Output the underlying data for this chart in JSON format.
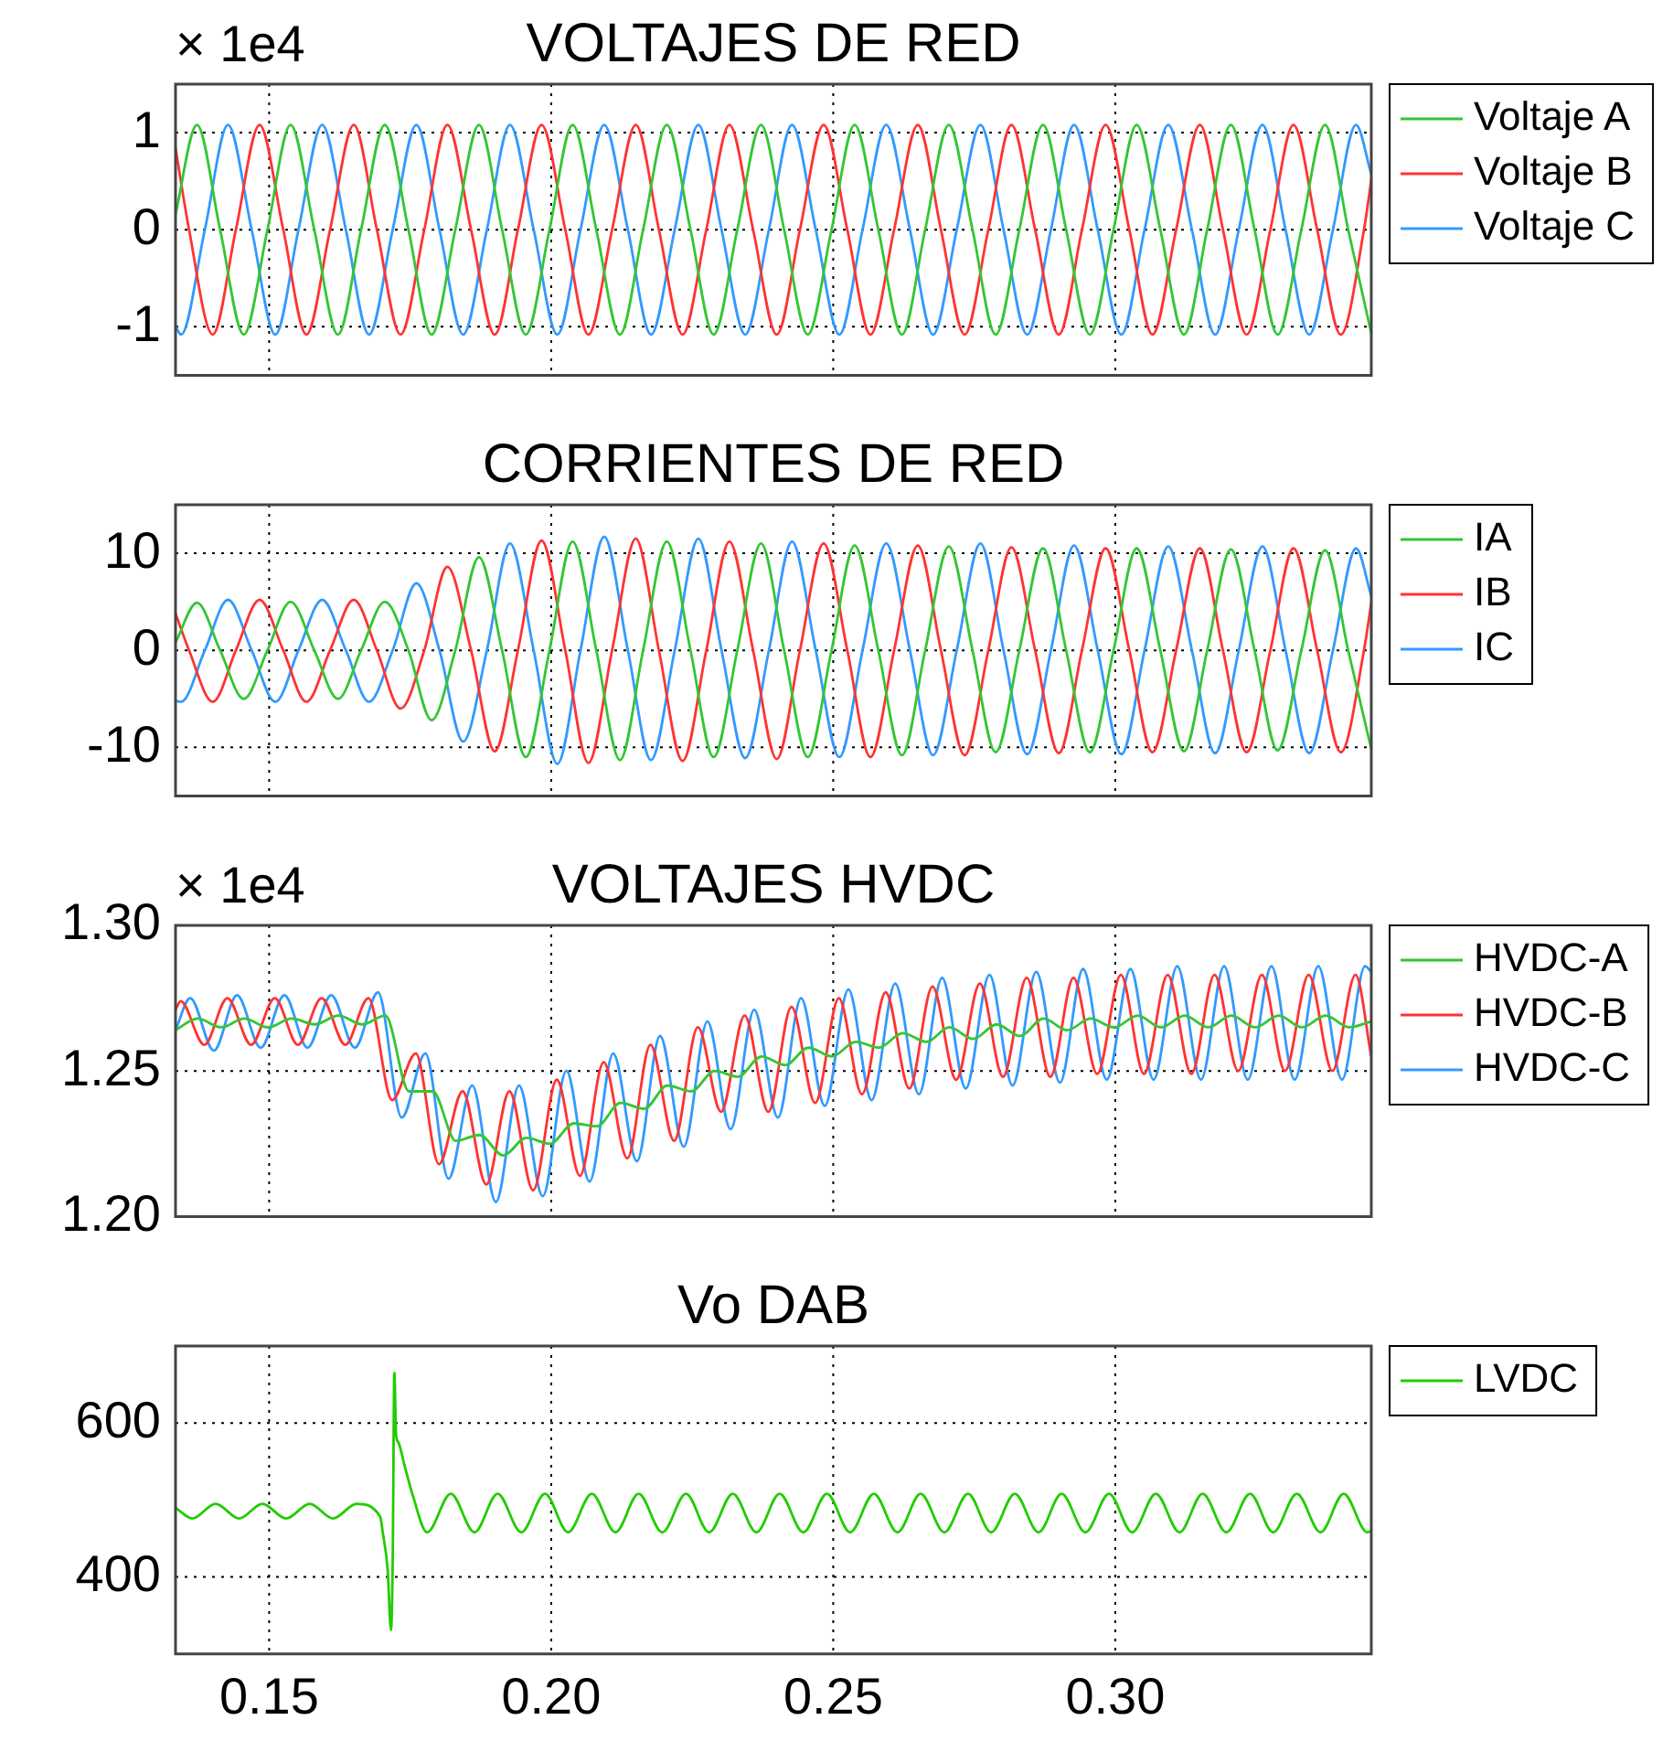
{
  "chart_data": [
    {
      "type": "line",
      "title": "VOLTAJES DE RED",
      "ylabel": "× 1e4",
      "xlim": [
        0.1334,
        0.3454
      ],
      "ylim": [
        -1.5,
        1.5
      ],
      "xticks": [
        0.15,
        0.2,
        0.25,
        0.3
      ],
      "yticks": [
        -1,
        0,
        1
      ],
      "grid": true,
      "legend": "right",
      "tick_labels": "y",
      "series": [
        {
          "name": "Voltaje A",
          "color": "#33c633",
          "x": [
            0.1334,
            0.1372,
            0.1413,
            0.1455,
            0.1497,
            0.1538,
            0.158,
            0.1622,
            0.1663,
            0.1705,
            0.1747,
            0.1788,
            0.183,
            0.1872,
            0.1913,
            0.1955,
            0.1997,
            0.2038,
            0.208,
            0.2122,
            0.2163,
            0.2205,
            0.2247,
            0.2288,
            0.233,
            0.2372,
            0.2413,
            0.2455,
            0.2497,
            0.2538,
            0.258,
            0.2622,
            0.2663,
            0.2705,
            0.2747,
            0.2788,
            0.283,
            0.2872,
            0.2913,
            0.2955,
            0.2997,
            0.3038,
            0.308,
            0.3122,
            0.3163,
            0.3205,
            0.3247,
            0.3288,
            0.333,
            0.3372,
            0.3413,
            0.3454
          ],
          "values": [
            0.16,
            1.08,
            0,
            -1.08,
            0,
            1.08,
            0,
            -1.08,
            0,
            1.08,
            0,
            -1.08,
            0,
            1.08,
            0,
            -1.08,
            0,
            1.08,
            0,
            -1.08,
            0,
            1.08,
            0,
            -1.08,
            0,
            1.08,
            0,
            -1.08,
            0,
            1.08,
            0,
            -1.08,
            0,
            1.08,
            0,
            -1.08,
            0,
            1.08,
            0,
            -1.08,
            0,
            1.08,
            0,
            -1.08,
            0,
            1.08,
            0,
            -1.08,
            0,
            1.08,
            0,
            -1.07
          ]
        },
        {
          "name": "Voltaje B",
          "color": "#ff3333",
          "x": [
            0.1334,
            0.1358,
            0.14,
            0.1441,
            0.1483,
            0.1525,
            0.1566,
            0.1608,
            0.165,
            0.1691,
            0.1733,
            0.1775,
            0.1816,
            0.1858,
            0.19,
            0.1941,
            0.1983,
            0.2025,
            0.2066,
            0.2108,
            0.215,
            0.2191,
            0.2233,
            0.2275,
            0.2316,
            0.2358,
            0.24,
            0.2441,
            0.2483,
            0.2525,
            0.2566,
            0.2608,
            0.265,
            0.2691,
            0.2733,
            0.2775,
            0.2816,
            0.2858,
            0.29,
            0.2941,
            0.2983,
            0.3025,
            0.3066,
            0.3108,
            0.315,
            0.3191,
            0.3233,
            0.3275,
            0.3316,
            0.3358,
            0.34,
            0.3441,
            0.3454
          ],
          "values": [
            0.84,
            0,
            -1.08,
            0,
            1.08,
            0,
            -1.08,
            0,
            1.08,
            0,
            -1.08,
            0,
            1.08,
            0,
            -1.08,
            0,
            1.08,
            0,
            -1.08,
            0,
            1.08,
            0,
            -1.08,
            0,
            1.08,
            0,
            -1.08,
            0,
            1.08,
            0,
            -1.08,
            0,
            1.08,
            0,
            -1.08,
            0,
            1.08,
            0,
            -1.08,
            0,
            1.08,
            0,
            -1.08,
            0,
            1.08,
            0,
            -1.08,
            0,
            1.08,
            0,
            -1.08,
            0,
            0.51
          ]
        },
        {
          "name": "Voltaje C",
          "color": "#3399ff",
          "x": [
            0.1334,
            0.1344,
            0.1386,
            0.1427,
            0.1469,
            0.1511,
            0.1552,
            0.1594,
            0.1636,
            0.1677,
            0.1719,
            0.1761,
            0.1802,
            0.1844,
            0.1886,
            0.1927,
            0.1969,
            0.2011,
            0.2052,
            0.2094,
            0.2136,
            0.2177,
            0.2219,
            0.2261,
            0.2302,
            0.2344,
            0.2386,
            0.2427,
            0.2469,
            0.2511,
            0.2552,
            0.2594,
            0.2636,
            0.2677,
            0.2719,
            0.2761,
            0.2802,
            0.2844,
            0.2886,
            0.2927,
            0.2969,
            0.3011,
            0.3052,
            0.3094,
            0.3136,
            0.3177,
            0.3219,
            0.3261,
            0.3302,
            0.3344,
            0.3386,
            0.3427,
            0.3454
          ],
          "values": [
            -1.0,
            -1.08,
            0,
            1.08,
            0,
            -1.08,
            0,
            1.08,
            0,
            -1.08,
            0,
            1.08,
            0,
            -1.08,
            0,
            1.08,
            0,
            -1.08,
            0,
            1.08,
            0,
            -1.08,
            0,
            1.08,
            0,
            -1.08,
            0,
            1.08,
            0,
            -1.08,
            0,
            1.08,
            0,
            -1.08,
            0,
            1.08,
            0,
            -1.08,
            0,
            1.08,
            0,
            -1.08,
            0,
            1.08,
            0,
            -1.08,
            0,
            1.08,
            0,
            -1.08,
            0,
            1.08,
            0.57
          ]
        }
      ]
    },
    {
      "type": "line",
      "title": "CORRIENTES DE RED",
      "xlim": [
        0.1334,
        0.3454
      ],
      "ylim": [
        -15,
        15
      ],
      "xticks": [
        0.15,
        0.2,
        0.25,
        0.3
      ],
      "yticks": [
        -10,
        0,
        10
      ],
      "grid": true,
      "legend": "right",
      "tick_labels": "y",
      "series": [
        {
          "name": "IA",
          "color": "#33c633",
          "x": [
            0.1334,
            0.1372,
            0.1413,
            0.1455,
            0.1497,
            0.1538,
            0.158,
            0.1622,
            0.1663,
            0.1705,
            0.1747,
            0.1788,
            0.183,
            0.1872,
            0.1913,
            0.1955,
            0.1997,
            0.2038,
            0.208,
            0.2122,
            0.2163,
            0.2205,
            0.2247,
            0.2288,
            0.233,
            0.2372,
            0.2413,
            0.2455,
            0.2497,
            0.2538,
            0.258,
            0.2622,
            0.2663,
            0.2705,
            0.2747,
            0.2788,
            0.283,
            0.2872,
            0.2913,
            0.2955,
            0.2997,
            0.3038,
            0.308,
            0.3122,
            0.3163,
            0.3205,
            0.3247,
            0.3288,
            0.333,
            0.3372,
            0.3413,
            0.3454
          ],
          "values": [
            0.8,
            4.9,
            0,
            -5,
            0,
            5,
            0,
            -5,
            0,
            5,
            0,
            -7.2,
            0,
            9.6,
            0,
            -11,
            0,
            11.2,
            0,
            -11.3,
            0,
            11.2,
            0,
            -11,
            0,
            11,
            0,
            -11,
            0,
            10.8,
            0,
            -10.8,
            0,
            10.7,
            0,
            -10.5,
            0,
            10.5,
            0,
            -10.5,
            0,
            10.5,
            0,
            -10.4,
            0,
            10.4,
            0,
            -10.3,
            0,
            10.3,
            0,
            -10.2
          ]
        },
        {
          "name": "IB",
          "color": "#ff3333",
          "x": [
            0.1334,
            0.1358,
            0.14,
            0.1441,
            0.1483,
            0.1525,
            0.1566,
            0.1608,
            0.165,
            0.1691,
            0.1733,
            0.1775,
            0.1816,
            0.1858,
            0.19,
            0.1941,
            0.1983,
            0.2025,
            0.2066,
            0.2108,
            0.215,
            0.2191,
            0.2233,
            0.2275,
            0.2316,
            0.2358,
            0.24,
            0.2441,
            0.2483,
            0.2525,
            0.2566,
            0.2608,
            0.265,
            0.2691,
            0.2733,
            0.2775,
            0.2816,
            0.2858,
            0.29,
            0.2941,
            0.2983,
            0.3025,
            0.3066,
            0.3108,
            0.315,
            0.3191,
            0.3233,
            0.3275,
            0.3316,
            0.3358,
            0.34,
            0.3441,
            0.3454
          ],
          "values": [
            3.8,
            0,
            -5.3,
            0,
            5.2,
            0,
            -5.3,
            0,
            5.2,
            0,
            -6,
            0,
            8.6,
            0,
            -10.4,
            0,
            11.3,
            0,
            -11.6,
            0,
            11.5,
            0,
            -11.4,
            0,
            11.2,
            0,
            -11.2,
            0,
            11,
            0,
            -11,
            0,
            10.8,
            0,
            -10.8,
            0,
            10.6,
            0,
            -10.6,
            0,
            10.5,
            0,
            -10.5,
            0,
            10.5,
            0,
            -10.5,
            0,
            10.5,
            0,
            -10.5,
            0,
            4.9
          ]
        },
        {
          "name": "IC",
          "color": "#3399ff",
          "x": [
            0.1334,
            0.1344,
            0.1386,
            0.1427,
            0.1469,
            0.1511,
            0.1552,
            0.1594,
            0.1636,
            0.1677,
            0.1719,
            0.1761,
            0.1802,
            0.1844,
            0.1886,
            0.1927,
            0.1969,
            0.2011,
            0.2052,
            0.2094,
            0.2136,
            0.2177,
            0.2219,
            0.2261,
            0.2302,
            0.2344,
            0.2386,
            0.2427,
            0.2469,
            0.2511,
            0.2552,
            0.2594,
            0.2636,
            0.2677,
            0.2719,
            0.2761,
            0.2802,
            0.2844,
            0.2886,
            0.2927,
            0.2969,
            0.3011,
            0.3052,
            0.3094,
            0.3136,
            0.3177,
            0.3219,
            0.3261,
            0.3302,
            0.3344,
            0.3386,
            0.3427,
            0.3454
          ],
          "values": [
            -5.2,
            -5.3,
            0,
            5.2,
            0,
            -5.3,
            0,
            5.2,
            0,
            -5.3,
            0,
            6.9,
            0,
            -9.4,
            0,
            11,
            0,
            -11.7,
            0,
            11.7,
            0,
            -11.3,
            0,
            11.5,
            0,
            -11.1,
            0,
            11.2,
            0,
            -11,
            0,
            11,
            0,
            -10.8,
            0,
            11,
            0,
            -10.7,
            0,
            10.8,
            0,
            -10.7,
            0,
            10.7,
            0,
            -10.6,
            0,
            10.7,
            0,
            -10.6,
            0,
            10.5,
            5.6
          ]
        }
      ]
    },
    {
      "type": "line",
      "title": "VOLTAJES HVDC",
      "ylabel": "× 1e4",
      "xlim": [
        0.1334,
        0.3454
      ],
      "ylim": [
        1.2,
        1.3
      ],
      "xticks": [
        0.15,
        0.2,
        0.25,
        0.3
      ],
      "yticks": [
        {
          "value": 1.2,
          "label": "1.20"
        },
        {
          "value": 1.25,
          "label": "1.25"
        },
        {
          "value": 1.3,
          "label": "1.30"
        }
      ],
      "grid": true,
      "legend": "right",
      "tick_labels": "y",
      "series": [
        {
          "name": "HVDC-A",
          "color": "#33c633",
          "x": [
            0.1334,
            0.1373,
            0.1415,
            0.1456,
            0.1498,
            0.154,
            0.1581,
            0.1623,
            0.1665,
            0.1706,
            0.1748,
            0.179,
            0.1831,
            0.1873,
            0.1915,
            0.1956,
            0.1998,
            0.204,
            0.2081,
            0.2123,
            0.2165,
            0.2206,
            0.2248,
            0.229,
            0.2331,
            0.2373,
            0.2415,
            0.2456,
            0.2498,
            0.254,
            0.2581,
            0.2623,
            0.2665,
            0.2706,
            0.2748,
            0.279,
            0.2831,
            0.2873,
            0.2915,
            0.2956,
            0.2998,
            0.304,
            0.3081,
            0.3123,
            0.3165,
            0.3206,
            0.3248,
            0.329,
            0.3331,
            0.3373,
            0.3415,
            0.3454
          ],
          "values": [
            1.264,
            1.268,
            1.265,
            1.268,
            1.265,
            1.268,
            1.266,
            1.269,
            1.266,
            1.269,
            1.243,
            1.243,
            1.226,
            1.228,
            1.221,
            1.227,
            1.225,
            1.232,
            1.231,
            1.239,
            1.237,
            1.245,
            1.243,
            1.25,
            1.248,
            1.255,
            1.252,
            1.258,
            1.255,
            1.26,
            1.258,
            1.263,
            1.26,
            1.265,
            1.261,
            1.266,
            1.262,
            1.268,
            1.264,
            1.268,
            1.265,
            1.269,
            1.265,
            1.269,
            1.265,
            1.269,
            1.265,
            1.269,
            1.265,
            1.269,
            1.265,
            1.267
          ]
        },
        {
          "name": "HVDC-B",
          "color": "#ff3333",
          "x": [
            0.1334,
            0.1343,
            0.1385,
            0.1426,
            0.1468,
            0.151,
            0.1551,
            0.1593,
            0.1635,
            0.1676,
            0.1718,
            0.176,
            0.1801,
            0.1843,
            0.1885,
            0.1926,
            0.1968,
            0.201,
            0.2051,
            0.2093,
            0.2135,
            0.2176,
            0.2218,
            0.226,
            0.2301,
            0.2343,
            0.2385,
            0.2426,
            0.2468,
            0.251,
            0.2551,
            0.2593,
            0.2635,
            0.2676,
            0.2718,
            0.276,
            0.2801,
            0.2843,
            0.2885,
            0.2926,
            0.2968,
            0.301,
            0.3051,
            0.3093,
            0.3135,
            0.3176,
            0.3218,
            0.326,
            0.3301,
            0.3343,
            0.3385,
            0.3426,
            0.3454
          ],
          "values": [
            1.271,
            1.274,
            1.259,
            1.275,
            1.259,
            1.275,
            1.259,
            1.275,
            1.259,
            1.275,
            1.24,
            1.256,
            1.218,
            1.243,
            1.211,
            1.243,
            1.209,
            1.247,
            1.214,
            1.253,
            1.22,
            1.259,
            1.226,
            1.265,
            1.236,
            1.269,
            1.236,
            1.272,
            1.239,
            1.275,
            1.242,
            1.277,
            1.244,
            1.279,
            1.247,
            1.28,
            1.248,
            1.282,
            1.248,
            1.282,
            1.249,
            1.283,
            1.249,
            1.283,
            1.249,
            1.283,
            1.25,
            1.283,
            1.25,
            1.283,
            1.25,
            1.283,
            1.255
          ]
        },
        {
          "name": "HVDC-C",
          "color": "#3399ff",
          "x": [
            0.1334,
            0.136,
            0.1402,
            0.1443,
            0.1485,
            0.1527,
            0.1568,
            0.161,
            0.1652,
            0.1693,
            0.1735,
            0.1777,
            0.1818,
            0.186,
            0.1902,
            0.1943,
            0.1985,
            0.2027,
            0.2068,
            0.211,
            0.2152,
            0.2193,
            0.2235,
            0.2277,
            0.2318,
            0.236,
            0.2402,
            0.2443,
            0.2485,
            0.2527,
            0.2568,
            0.261,
            0.2652,
            0.2693,
            0.2735,
            0.2777,
            0.2818,
            0.286,
            0.2902,
            0.2943,
            0.2985,
            0.3027,
            0.3068,
            0.311,
            0.3152,
            0.3193,
            0.3235,
            0.3277,
            0.3318,
            0.336,
            0.3402,
            0.3443,
            0.3454
          ],
          "values": [
            1.264,
            1.275,
            1.257,
            1.276,
            1.258,
            1.276,
            1.258,
            1.276,
            1.258,
            1.277,
            1.234,
            1.256,
            1.213,
            1.245,
            1.205,
            1.245,
            1.207,
            1.25,
            1.212,
            1.256,
            1.219,
            1.262,
            1.224,
            1.267,
            1.23,
            1.271,
            1.234,
            1.275,
            1.238,
            1.278,
            1.24,
            1.28,
            1.242,
            1.282,
            1.244,
            1.283,
            1.245,
            1.284,
            1.246,
            1.285,
            1.247,
            1.285,
            1.247,
            1.286,
            1.247,
            1.286,
            1.247,
            1.286,
            1.247,
            1.286,
            1.247,
            1.286,
            1.284
          ]
        }
      ]
    },
    {
      "type": "line",
      "title": "Vo DAB",
      "xlim": [
        0.1334,
        0.3454
      ],
      "ylim": [
        300,
        700
      ],
      "xticks": [
        {
          "value": 0.15,
          "label": "0.15"
        },
        {
          "value": 0.2,
          "label": "0.20"
        },
        {
          "value": 0.25,
          "label": "0.25"
        },
        {
          "value": 0.3,
          "label": "0.30"
        }
      ],
      "yticks": [
        400,
        600
      ],
      "grid": true,
      "legend": "right",
      "series": [
        {
          "name": "LVDC",
          "color": "#22cc00",
          "x": [
            0.1334,
            0.1364,
            0.1405,
            0.1447,
            0.1488,
            0.153,
            0.1572,
            0.1613,
            0.1655,
            0.1697,
            0.1701,
            0.171,
            0.1716,
            0.1719,
            0.1722,
            0.1725,
            0.1729,
            0.174,
            0.1755,
            0.178,
            0.1822,
            0.1864,
            0.1905,
            0.1947,
            0.1989,
            0.203,
            0.2072,
            0.2114,
            0.2155,
            0.2197,
            0.2239,
            0.228,
            0.2322,
            0.2364,
            0.2405,
            0.2447,
            0.2489,
            0.253,
            0.2572,
            0.2614,
            0.2655,
            0.2697,
            0.2739,
            0.278,
            0.2822,
            0.2864,
            0.2905,
            0.2947,
            0.2989,
            0.303,
            0.3072,
            0.3114,
            0.3155,
            0.3197,
            0.3239,
            0.328,
            0.3322,
            0.3364,
            0.3405,
            0.3447,
            0.3454
          ],
          "values": [
            490,
            476,
            495,
            476,
            495,
            476,
            495,
            476,
            495,
            478,
            460,
            410,
            331,
            420,
            665,
            585,
            575,
            545,
            505,
            458,
            508,
            458,
            508,
            458,
            508,
            458,
            508,
            458,
            508,
            458,
            508,
            458,
            508,
            458,
            508,
            458,
            508,
            458,
            508,
            458,
            508,
            458,
            508,
            458,
            508,
            458,
            508,
            458,
            508,
            458,
            508,
            458,
            508,
            458,
            508,
            458,
            508,
            458,
            508,
            458,
            460
          ]
        }
      ]
    }
  ]
}
